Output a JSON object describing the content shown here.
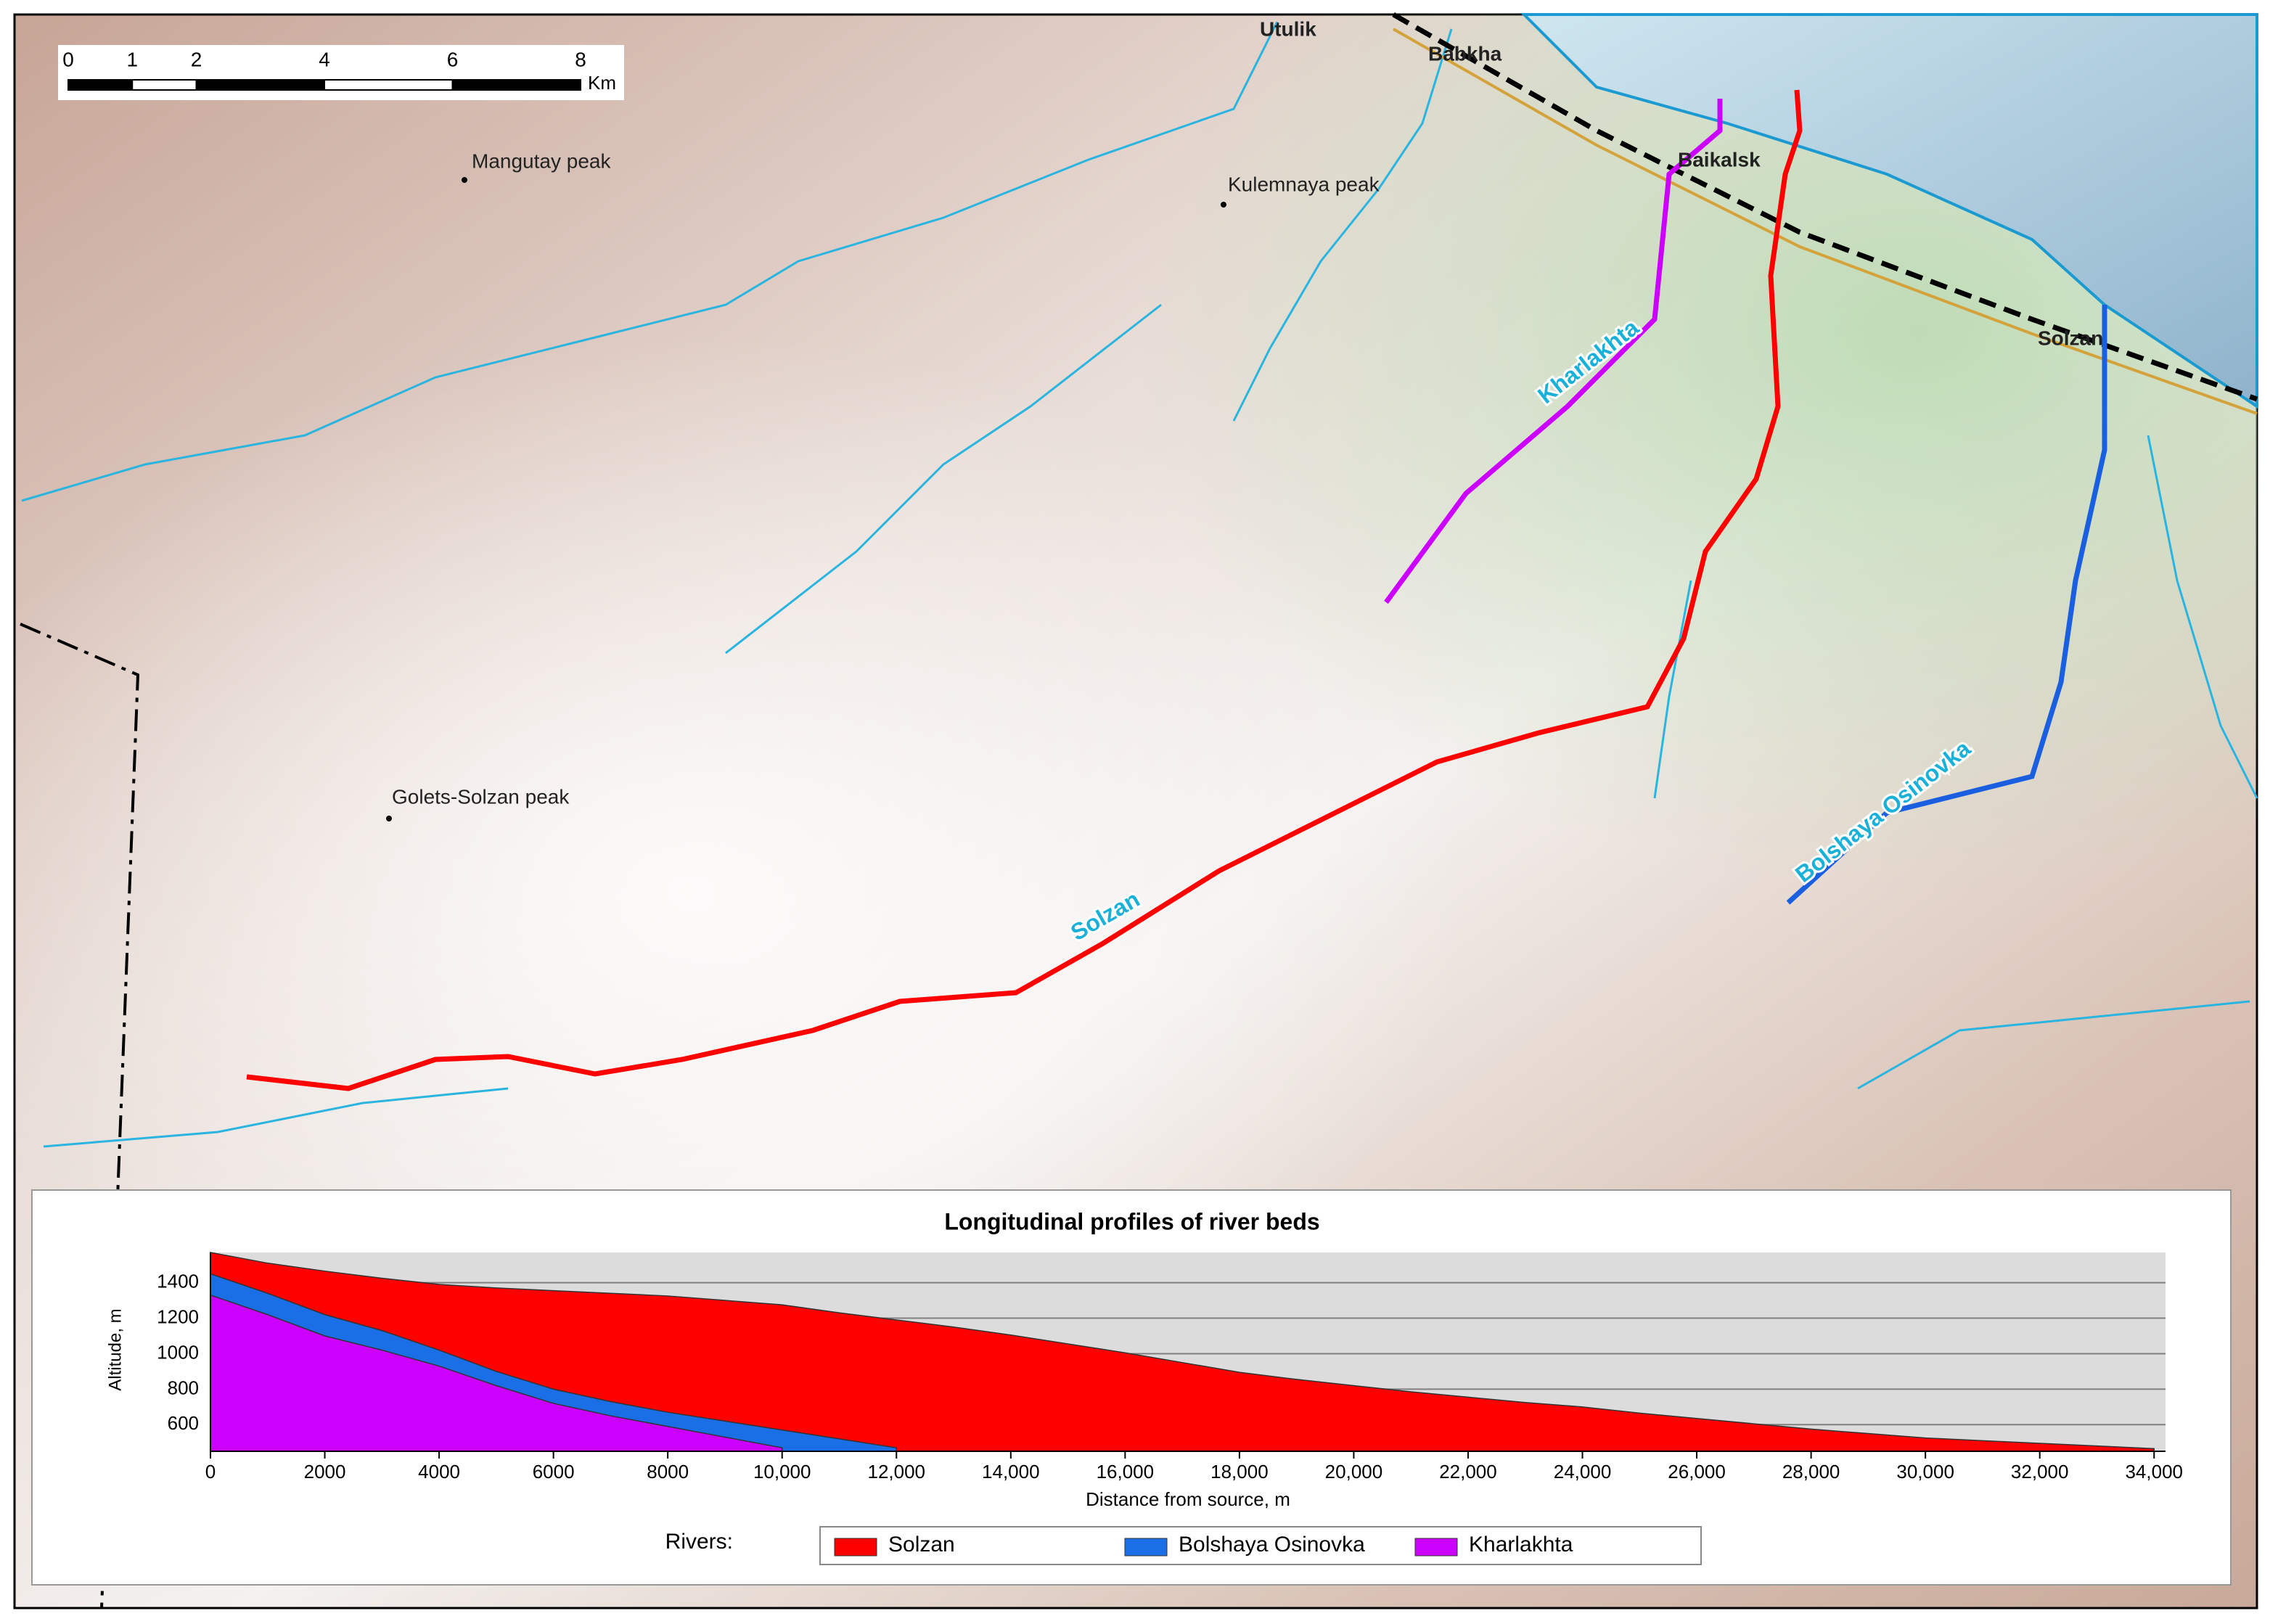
{
  "map": {
    "places": [
      "Utulik",
      "Babkha",
      "Baikalsk",
      "Solzan"
    ],
    "peaks": [
      "Mangutay peak",
      "Kulemnaya peak",
      "Golets-Solzan peak"
    ],
    "rivers": [
      "Kharlakhta",
      "Solzan",
      "Bolshaya Osinovka"
    ],
    "scale_bar": {
      "ticks": [
        0,
        1,
        2,
        4,
        6,
        8
      ],
      "unit": "Km"
    }
  },
  "chart_data": {
    "type": "area",
    "title": "Longitudinal profiles of river beds",
    "x_label": "Distance from source, m",
    "y_label": "Altitude, m",
    "legend_title": "Rivers:",
    "x": [
      0,
      1000,
      2000,
      3000,
      4000,
      5000,
      6000,
      7000,
      8000,
      9000,
      10000,
      11000,
      12000,
      13000,
      14000,
      15000,
      16000,
      17000,
      18000,
      19000,
      20000,
      21000,
      22000,
      23000,
      24000,
      25000,
      26000,
      27000,
      28000,
      29000,
      30000,
      31000,
      32000,
      33000,
      34000
    ],
    "series": [
      {
        "name": "Solzan",
        "color": "#ff0000",
        "values": [
          1570,
          1510,
          1465,
          1425,
          1390,
          1370,
          1355,
          1340,
          1325,
          1300,
          1275,
          1230,
          1190,
          1150,
          1105,
          1055,
          1005,
          950,
          895,
          855,
          820,
          785,
          755,
          725,
          700,
          665,
          635,
          605,
          575,
          550,
          525,
          510,
          495,
          480,
          465
        ]
      },
      {
        "name": "Bolshaya Osinovka",
        "color": "#1a6fe6",
        "values": [
          1450,
          1340,
          1220,
          1130,
          1020,
          900,
          800,
          730,
          670,
          620,
          570,
          520,
          470,
          null,
          null,
          null,
          null,
          null,
          null,
          null,
          null,
          null,
          null,
          null,
          null,
          null,
          null,
          null,
          null,
          null,
          null,
          null,
          null,
          null,
          null
        ]
      },
      {
        "name": "Kharlakhta",
        "color": "#cc00ff",
        "values": [
          1330,
          1220,
          1100,
          1020,
          930,
          820,
          720,
          650,
          590,
          530,
          470,
          null,
          null,
          null,
          null,
          null,
          null,
          null,
          null,
          null,
          null,
          null,
          null,
          null,
          null,
          null,
          null,
          null,
          null,
          null,
          null,
          null,
          null,
          null,
          null
        ]
      }
    ],
    "xlim": [
      0,
      34200
    ],
    "ylim": [
      450,
      1570
    ],
    "xticks": [
      0,
      2000,
      4000,
      6000,
      8000,
      {
        "value": 10000,
        "label": "10,000"
      },
      {
        "value": 12000,
        "label": "12,000"
      },
      {
        "value": 14000,
        "label": "14,000"
      },
      {
        "value": 16000,
        "label": "16,000"
      },
      {
        "value": 18000,
        "label": "18,000"
      },
      {
        "value": 20000,
        "label": "20,000"
      },
      {
        "value": 22000,
        "label": "22,000"
      },
      {
        "value": 24000,
        "label": "24,000"
      },
      {
        "value": 26000,
        "label": "26,000"
      },
      {
        "value": 28000,
        "label": "28,000"
      },
      {
        "value": 30000,
        "label": "30,000"
      },
      {
        "value": 32000,
        "label": "32,000"
      },
      {
        "value": 34000,
        "label": "34,000"
      }
    ],
    "yticks": [
      600,
      800,
      1000,
      1200,
      1400
    ],
    "grid": true
  }
}
